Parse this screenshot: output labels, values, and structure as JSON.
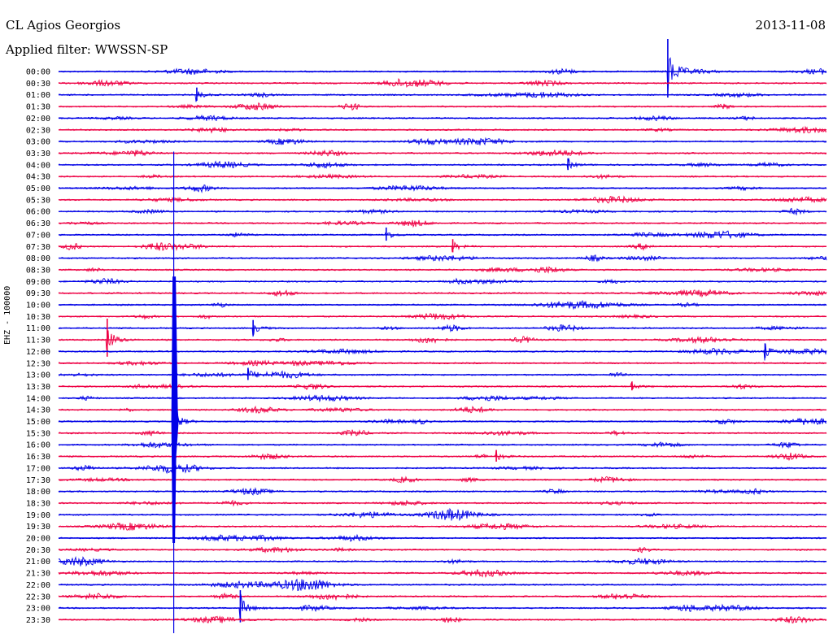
{
  "header": {
    "station": "CL Agios Georgios",
    "filter": "Applied filter: WWSSN-SP",
    "date": "2013-11-08"
  },
  "chart_data": {
    "type": "line",
    "title": "CL Agios Georgios",
    "ylabel": "EHZ - 100000",
    "row_labels": [
      "00:00",
      "00:30",
      "01:00",
      "01:30",
      "02:00",
      "02:30",
      "03:00",
      "03:30",
      "04:00",
      "04:30",
      "05:00",
      "05:30",
      "06:00",
      "06:30",
      "07:00",
      "07:30",
      "08:00",
      "08:30",
      "09:00",
      "09:30",
      "10:00",
      "10:30",
      "11:00",
      "11:30",
      "12:00",
      "12:30",
      "13:00",
      "13:30",
      "14:00",
      "14:30",
      "15:00",
      "15:30",
      "16:00",
      "16:30",
      "17:00",
      "17:30",
      "18:00",
      "18:30",
      "19:00",
      "19:30",
      "20:00",
      "20:30",
      "21:00",
      "21:30",
      "22:00",
      "22:30",
      "23:00",
      "23:30"
    ],
    "colors": [
      "#0000e6",
      "#ee0044"
    ],
    "time_axis_minutes": [
      0,
      30
    ],
    "events": [
      {
        "row": "00:00",
        "minute": 23.8,
        "amp": 40
      },
      {
        "row": "01:00",
        "minute": 5.4,
        "amp": 9
      },
      {
        "row": "04:00",
        "minute": 19.9,
        "amp": 8
      },
      {
        "row": "07:00",
        "minute": 12.8,
        "amp": 9
      },
      {
        "row": "07:30",
        "minute": 15.4,
        "amp": 9
      },
      {
        "row": "11:00",
        "minute": 7.6,
        "amp": 10
      },
      {
        "row": "11:30",
        "minute": 1.9,
        "amp": 26
      },
      {
        "row": "12:00",
        "minute": 27.6,
        "amp": 10
      },
      {
        "row": "13:00",
        "minute": 7.4,
        "amp": 8
      },
      {
        "row": "13:30",
        "minute": 22.4,
        "amp": 6
      },
      {
        "row": "15:00",
        "minute": 4.5,
        "amp": 22
      },
      {
        "row": "16:30",
        "minute": 17.1,
        "amp": 8
      },
      {
        "row": "23:00",
        "minute": 7.1,
        "amp": 22
      }
    ],
    "large_event": {
      "row_start": "03:30",
      "row_end": "20:00",
      "minute": 4.5
    }
  }
}
